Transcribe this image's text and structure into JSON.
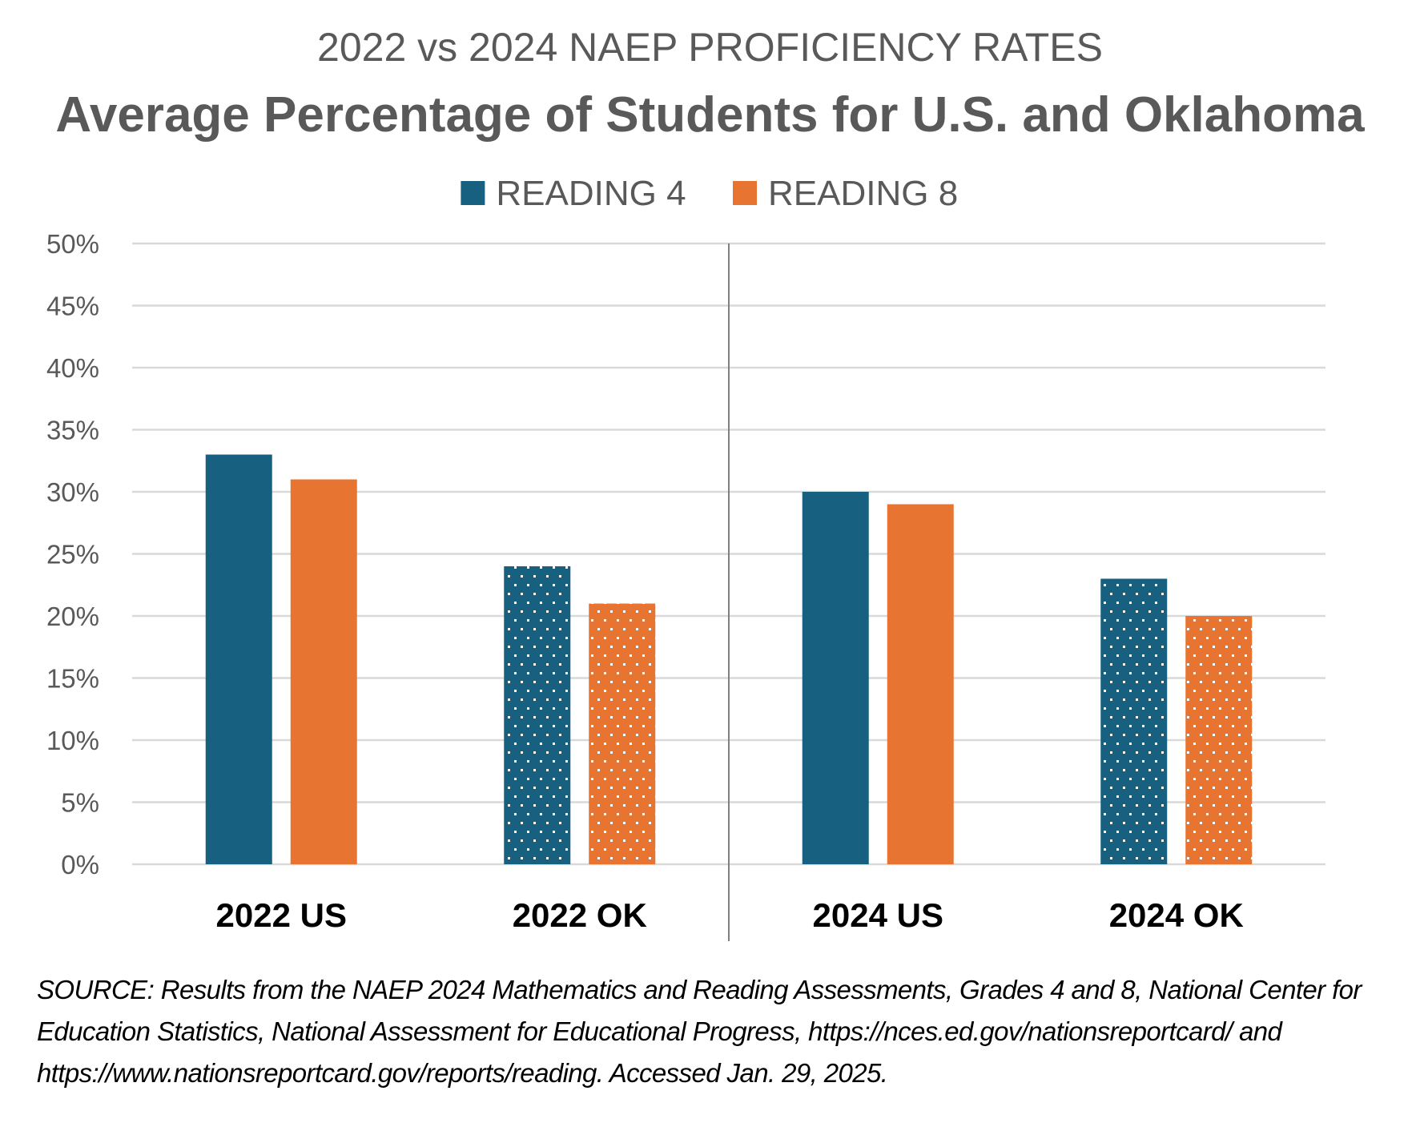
{
  "chart_data": {
    "type": "bar",
    "title": "2022 vs 2024 NAEP PROFICIENCY RATES",
    "subtitle": "Average Percentage of Students for U.S. and Oklahoma",
    "categories": [
      "2022 US",
      "2022 OK",
      "2024 US",
      "2024 OK"
    ],
    "series": [
      {
        "name": "READING 4",
        "color": "#17607f",
        "values": [
          33,
          24,
          30,
          23
        ]
      },
      {
        "name": "READING 8",
        "color": "#e87431",
        "values": [
          31,
          21,
          29,
          20
        ]
      }
    ],
    "patterned_categories": [
      "2022 OK",
      "2024 OK"
    ],
    "ylim": [
      0,
      50
    ],
    "yticks": [
      0,
      5,
      10,
      15,
      20,
      25,
      30,
      35,
      40,
      45,
      50
    ],
    "ytick_labels": [
      "0%",
      "5%",
      "10%",
      "15%",
      "20%",
      "25%",
      "30%",
      "35%",
      "40%",
      "45%",
      "50%"
    ],
    "xlabel": "",
    "ylabel": "",
    "grid": true,
    "legend_position": "top-center",
    "separator_after_category": "2022 OK"
  },
  "source": "SOURCE: Results from the NAEP 2024 Mathematics and Reading Assessments, Grades 4 and 8, National Center for Education Statistics, National Assessment for Educational Progress, https://nces.ed.gov/nationsreportcard/ and https://www.nationsreportcard.gov/reports/reading.  Accessed Jan. 29, 2025.",
  "colors": {
    "text_gray": "#595959",
    "gridline": "#d9d9d9",
    "separator": "#808080"
  }
}
